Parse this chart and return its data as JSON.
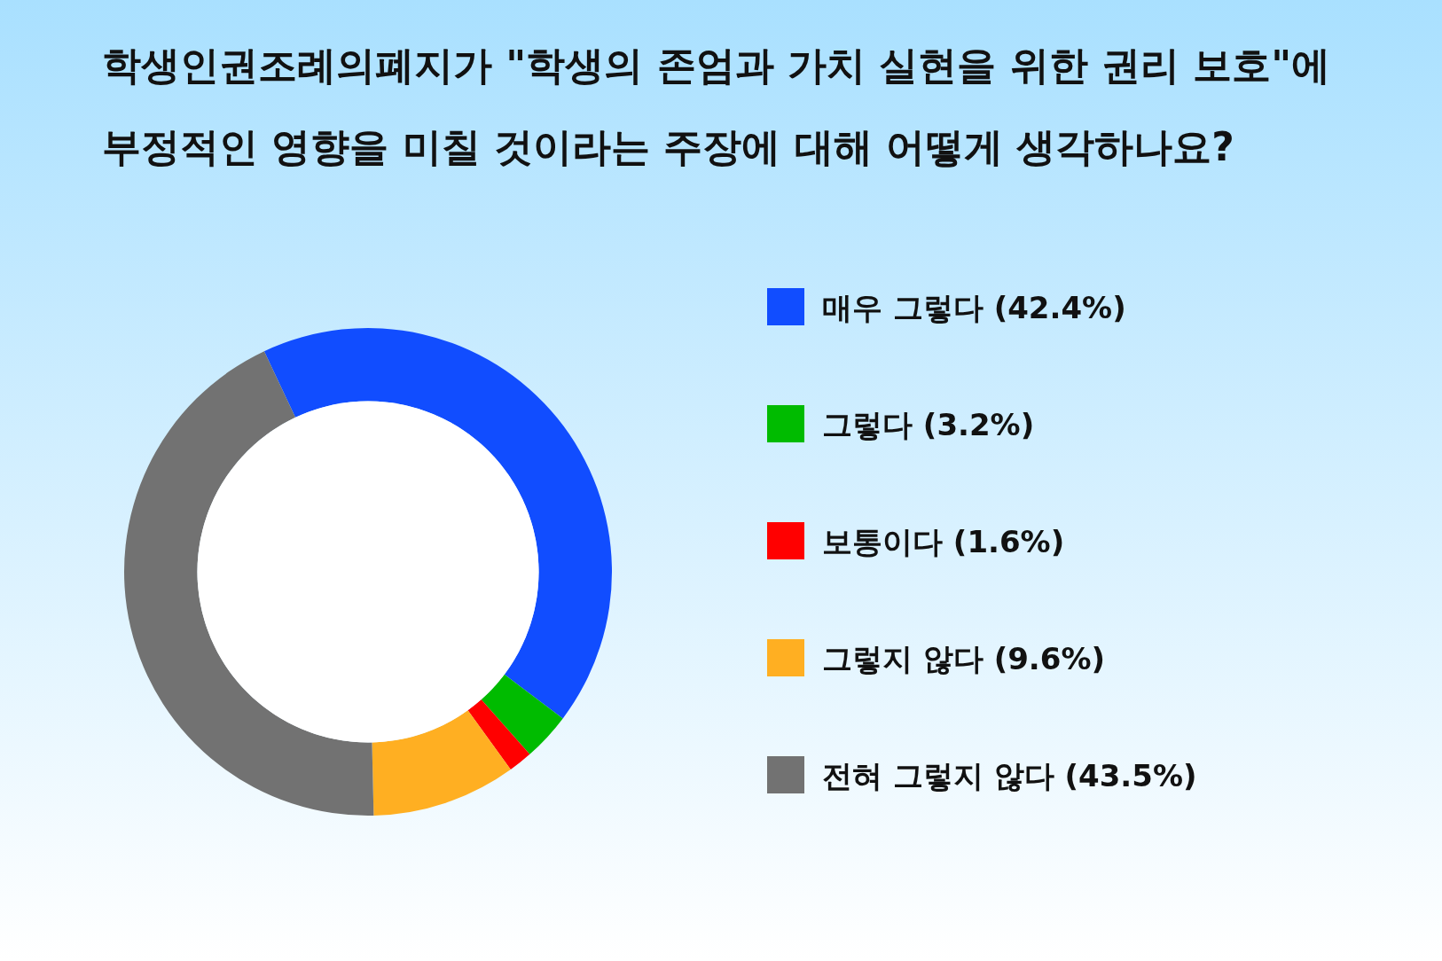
{
  "chart_data": {
    "type": "donut",
    "title": "학생인권조례의폐지가 \"학생의 존엄과 가치 실현을 위한 권리 보호\"에 부정적인 영향을 미칠 것이라는 주장에 대해  어떻게 생각하나요?",
    "categories": [
      "매우 그렇다 (42.4%)",
      "그렇다 (3.2%)",
      "보통이다 (1.6%)",
      "그렇지 않다 (9.6%)",
      "전혀 그렇지 않다 (43.5%)"
    ],
    "values": [
      42.4,
      3.2,
      1.6,
      9.6,
      43.5
    ],
    "colors": [
      "#114dff",
      "#00bb00",
      "#ff0000",
      "#ffaf22",
      "#727272"
    ],
    "legend": "right"
  }
}
